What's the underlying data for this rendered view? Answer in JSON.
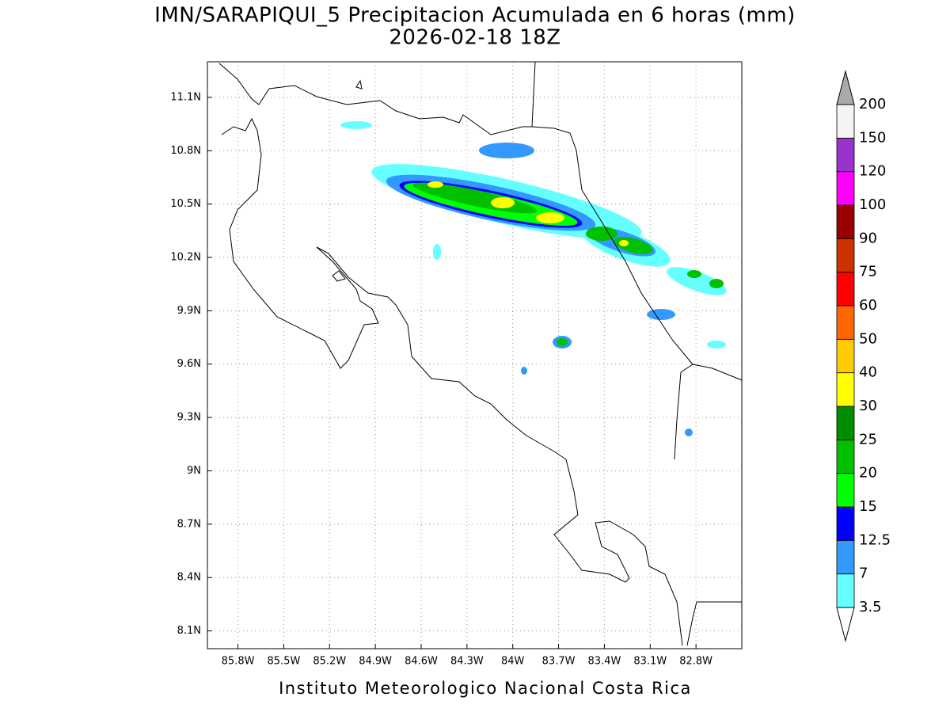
{
  "title": "IMN/SARAPIQUI_5 Precipitacion Acumulada en 6 horas (mm)",
  "subtitle": "2026-02-18 18Z",
  "footer": "Instituto Meteorologico Nacional Costa Rica",
  "map": {
    "xlim": [
      -86.0,
      -82.5
    ],
    "ylim": [
      8.0,
      11.3
    ],
    "grid": true,
    "xticks": [
      {
        "value": -85.8,
        "label": "85.8W"
      },
      {
        "value": -85.5,
        "label": "85.5W"
      },
      {
        "value": -85.2,
        "label": "85.2W"
      },
      {
        "value": -84.9,
        "label": "84.9W"
      },
      {
        "value": -84.6,
        "label": "84.6W"
      },
      {
        "value": -84.3,
        "label": "84.3W"
      },
      {
        "value": -84.0,
        "label": "84W"
      },
      {
        "value": -83.7,
        "label": "83.7W"
      },
      {
        "value": -83.4,
        "label": "83.4W"
      },
      {
        "value": -83.1,
        "label": "83.1W"
      },
      {
        "value": -82.8,
        "label": "82.8W"
      }
    ],
    "yticks": [
      {
        "value": 8.1,
        "label": "8.1N"
      },
      {
        "value": 8.4,
        "label": "8.4N"
      },
      {
        "value": 8.7,
        "label": "8.7N"
      },
      {
        "value": 9.0,
        "label": "9N"
      },
      {
        "value": 9.3,
        "label": "9.3N"
      },
      {
        "value": 9.6,
        "label": "9.6N"
      },
      {
        "value": 9.9,
        "label": "9.9N"
      },
      {
        "value": 10.2,
        "label": "10.2N"
      },
      {
        "value": 10.5,
        "label": "10.5N"
      },
      {
        "value": 10.8,
        "label": "10.8N"
      },
      {
        "value": 11.1,
        "label": "11.1N"
      }
    ]
  },
  "colorbar": {
    "levels": [
      3.5,
      7,
      12.5,
      15,
      20,
      25,
      30,
      40,
      50,
      60,
      75,
      90,
      100,
      120,
      150,
      200
    ],
    "colors": [
      "#66ffff",
      "#3399ff",
      "#0000ff",
      "#00ff00",
      "#00c000",
      "#008c00",
      "#ffff00",
      "#ffcc00",
      "#ff6600",
      "#ff0000",
      "#cc3300",
      "#990000",
      "#ff00ff",
      "#9933cc",
      "#f4f4f4"
    ],
    "under_color": "#ffffff",
    "over_color": "#aaaaaa"
  }
}
